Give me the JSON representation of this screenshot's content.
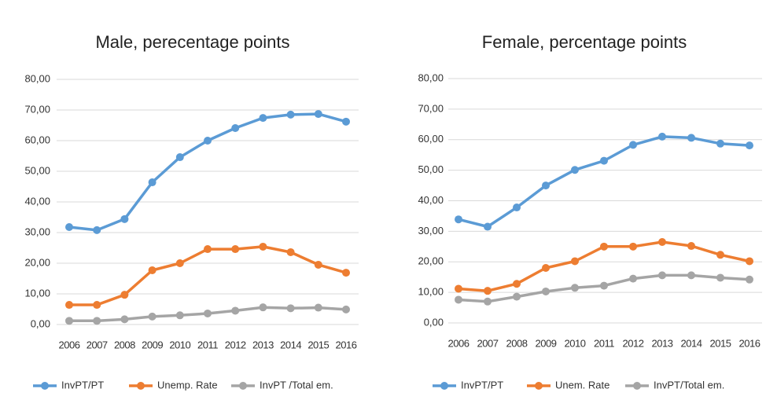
{
  "chart_data": [
    {
      "type": "line",
      "title": "Male, perecentage points",
      "categories": [
        "2006",
        "2007",
        "2008",
        "2009",
        "2010",
        "2011",
        "2012",
        "2013",
        "2014",
        "2015",
        "2016"
      ],
      "ylim": [
        0,
        80
      ],
      "yticks": [
        {
          "value": 0,
          "label": "0,00"
        },
        {
          "value": 10,
          "label": "10,00"
        },
        {
          "value": 20,
          "label": "20,00"
        },
        {
          "value": 30,
          "label": "30,00"
        },
        {
          "value": 40,
          "label": "40,00"
        },
        {
          "value": 50,
          "label": "50,00"
        },
        {
          "value": 60,
          "label": "60,00"
        },
        {
          "value": 70,
          "label": "70,00"
        },
        {
          "value": 80,
          "label": "80,00"
        }
      ],
      "grid": true,
      "series": [
        {
          "name": "InvPT/PT",
          "color": "#5b9bd5",
          "values": [
            31.8,
            30.8,
            34.4,
            46.4,
            54.6,
            60,
            64.1,
            67.4,
            68.5,
            68.7,
            66.2
          ]
        },
        {
          "name": "Unemp. Rate",
          "color": "#ed7d31",
          "values": [
            6.4,
            6.4,
            9.7,
            17.7,
            20,
            24.6,
            24.6,
            25.4,
            23.6,
            19.5,
            16.9
          ]
        },
        {
          "name": "InvPT /Total em.",
          "color": "#a5a5a5",
          "values": [
            1.2,
            1.2,
            1.7,
            2.6,
            3,
            3.6,
            4.5,
            5.6,
            5.3,
            5.5,
            4.9
          ]
        }
      ]
    },
    {
      "type": "line",
      "title": "Female, percentage points",
      "categories": [
        "2006",
        "2007",
        "2008",
        "2009",
        "2010",
        "2011",
        "2012",
        "2013",
        "2014",
        "2015",
        "2016"
      ],
      "ylim": [
        0,
        80
      ],
      "yticks": [
        {
          "value": 0,
          "label": "0,00"
        },
        {
          "value": 10,
          "label": "10,00"
        },
        {
          "value": 20,
          "label": "20,00"
        },
        {
          "value": 30,
          "label": "30,00"
        },
        {
          "value": 40,
          "label": "40,00"
        },
        {
          "value": 50,
          "label": "50,00"
        },
        {
          "value": 60,
          "label": "60,00"
        },
        {
          "value": 70,
          "label": "70,00"
        },
        {
          "value": 80,
          "label": "80,00"
        }
      ],
      "grid": true,
      "series": [
        {
          "name": "InvPT/PT",
          "color": "#5b9bd5",
          "values": [
            33.9,
            31.5,
            37.8,
            45,
            50.1,
            53.1,
            58.3,
            61,
            60.6,
            58.7,
            58.1
          ]
        },
        {
          "name": "Unem. Rate",
          "color": "#ed7d31",
          "values": [
            11.2,
            10.5,
            12.8,
            18,
            20.2,
            25,
            25,
            26.5,
            25.2,
            22.3,
            20.2
          ]
        },
        {
          "name": "InvPT/Total em.",
          "color": "#a5a5a5",
          "values": [
            7.6,
            7,
            8.6,
            10.3,
            11.5,
            12.2,
            14.5,
            15.6,
            15.6,
            14.8,
            14.2
          ]
        }
      ]
    }
  ]
}
